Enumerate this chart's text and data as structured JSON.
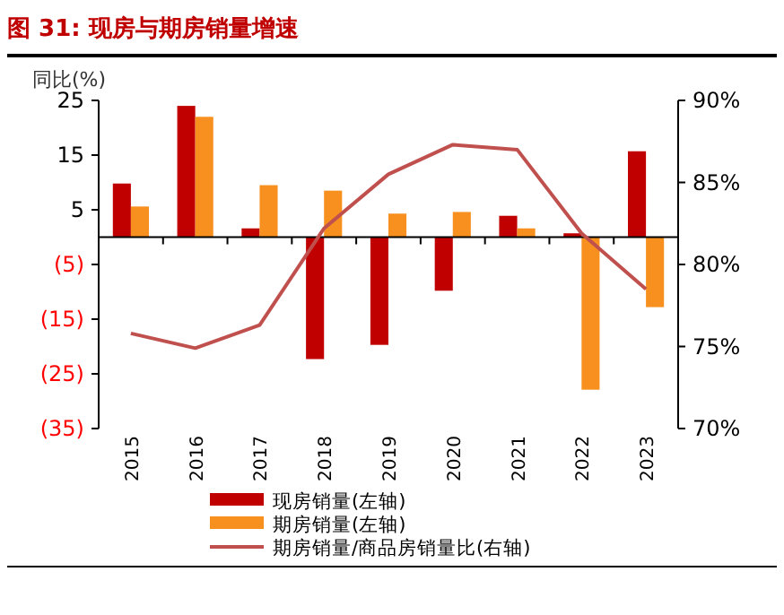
{
  "chart_data": {
    "type": "bar",
    "title": "图 31: 现房与期房销量增速",
    "ylabel": "同比(%)",
    "categories": [
      "2015",
      "2016",
      "2017",
      "2018",
      "2019",
      "2020",
      "2021",
      "2022",
      "2023"
    ],
    "series": [
      {
        "name": "现房销量(左轴)",
        "color": "#c00000",
        "values": [
          9.8,
          24,
          1.6,
          -22.3,
          -19.7,
          -9.8,
          3.9,
          0.7,
          15.7
        ]
      },
      {
        "name": "期房销量(左轴)",
        "color": "#f7901e",
        "values": [
          5.6,
          22,
          9.5,
          8.5,
          4.3,
          4.6,
          1.6,
          -27.9,
          -12.8
        ]
      },
      {
        "name": "期房销量/商品房销量比(右轴)",
        "type": "line",
        "axis": "y2",
        "color": "#c0504d",
        "values": [
          75.8,
          74.9,
          76.3,
          82.2,
          85.5,
          87.3,
          87.0,
          81.9,
          78.5
        ]
      }
    ],
    "ylim": [
      -35,
      25
    ],
    "yticks": [
      25,
      15,
      5,
      {
        "value": -5,
        "label": "(5)"
      },
      {
        "value": -15,
        "label": "(15)"
      },
      {
        "value": -25,
        "label": "(25)"
      },
      {
        "value": -35,
        "label": "(35)"
      }
    ],
    "y2lim": [
      70,
      90
    ],
    "y2ticks": [
      {
        "value": 70,
        "label": "70%"
      },
      {
        "value": 75,
        "label": "75%"
      },
      {
        "value": 80,
        "label": "80%"
      },
      {
        "value": 85,
        "label": "85%"
      },
      {
        "value": 90,
        "label": "90%"
      }
    ],
    "legend": "bottom",
    "grid": false
  }
}
